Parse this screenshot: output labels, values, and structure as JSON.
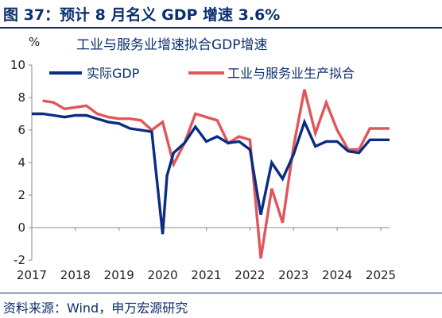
{
  "header": {
    "title": "图 37：预计 8 月名义 GDP 增速 3.6%"
  },
  "source": "资料来源：Wind，申万宏源研究",
  "colors": {
    "series_real": "#0a2c83",
    "series_fit": "#e0565a",
    "header": "#0b2f6e"
  },
  "chart_data": {
    "type": "line",
    "title": "工业与服务业增速拟合GDP增速",
    "ylabel": "%",
    "ylim": [
      -2,
      10
    ],
    "yticks": [
      -2,
      0,
      2,
      4,
      6,
      8,
      10
    ],
    "xlim": [
      2017,
      2025.2
    ],
    "xticks": [
      "2017",
      "2018",
      "2019",
      "2020",
      "2021",
      "2022",
      "2023",
      "2024",
      "2025"
    ],
    "legend_position": "top",
    "series": [
      {
        "name": "实际GDP",
        "x": [
          2017.0,
          2017.25,
          2017.5,
          2017.75,
          2018.0,
          2018.25,
          2018.5,
          2018.75,
          2019.0,
          2019.25,
          2019.5,
          2019.75,
          2020.0,
          2020.1,
          2020.25,
          2020.5,
          2020.75,
          2021.0,
          2021.25,
          2021.5,
          2021.75,
          2022.0,
          2022.25,
          2022.5,
          2022.75,
          2023.0,
          2023.25,
          2023.5,
          2023.75,
          2024.0,
          2024.25,
          2024.5,
          2024.75,
          2025.0,
          2025.2
        ],
        "y": [
          7.0,
          7.0,
          6.9,
          6.8,
          6.9,
          6.9,
          6.7,
          6.5,
          6.4,
          6.1,
          6.0,
          5.9,
          -0.4,
          3.2,
          4.6,
          5.2,
          6.2,
          5.3,
          5.6,
          5.2,
          5.3,
          4.8,
          0.8,
          4.0,
          3.0,
          4.5,
          6.5,
          5.0,
          5.3,
          5.3,
          4.7,
          4.6,
          5.4,
          5.4,
          5.4
        ]
      },
      {
        "name": "工业与服务业生产拟合",
        "x": [
          2017.25,
          2017.5,
          2017.75,
          2018.0,
          2018.25,
          2018.5,
          2018.75,
          2019.0,
          2019.25,
          2019.5,
          2019.75,
          2020.0,
          2020.25,
          2020.5,
          2020.75,
          2021.0,
          2021.25,
          2021.5,
          2021.75,
          2022.0,
          2022.25,
          2022.5,
          2022.75,
          2023.0,
          2023.25,
          2023.5,
          2023.75,
          2024.0,
          2024.25,
          2024.5,
          2024.75,
          2025.0,
          2025.2
        ],
        "y": [
          7.8,
          7.7,
          7.3,
          7.4,
          7.5,
          7.0,
          6.8,
          6.7,
          6.7,
          6.6,
          6.0,
          6.5,
          3.9,
          5.2,
          7.0,
          6.8,
          6.6,
          5.2,
          5.6,
          5.4,
          -1.9,
          2.4,
          0.3,
          5.0,
          8.5,
          5.8,
          7.7,
          6.0,
          4.8,
          4.8,
          6.1,
          6.1,
          6.1
        ]
      }
    ]
  }
}
